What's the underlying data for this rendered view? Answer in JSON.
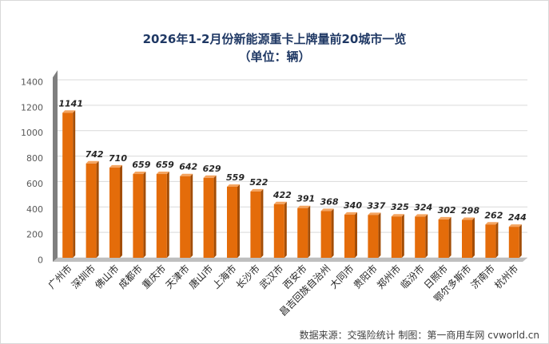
{
  "chart_data": {
    "type": "bar",
    "title": "2026年1-2月份新能源重卡上牌量前20城市一览",
    "subtitle": "（单位：辆）",
    "categories": [
      "广州市",
      "深圳市",
      "佛山市",
      "成都市",
      "重庆市",
      "天津市",
      "唐山市",
      "上海市",
      "长沙市",
      "武汉市",
      "西安市",
      "昌吉回族自治州",
      "大同市",
      "贵阳市",
      "郑州市",
      "临汾市",
      "日照市",
      "鄂尔多斯市",
      "济南市",
      "杭州市"
    ],
    "values": [
      1141,
      742,
      710,
      659,
      659,
      642,
      629,
      559,
      522,
      422,
      391,
      368,
      340,
      337,
      325,
      324,
      302,
      298,
      262,
      244
    ],
    "ylim": [
      0,
      1400
    ],
    "yticks": [
      0,
      200,
      400,
      600,
      800,
      1000,
      1200,
      1400
    ],
    "grid": true,
    "bar_color": "#e46c0a",
    "source_note": "数据来源：交强险统计   制图：第一商用车网 cvworld.cn"
  }
}
